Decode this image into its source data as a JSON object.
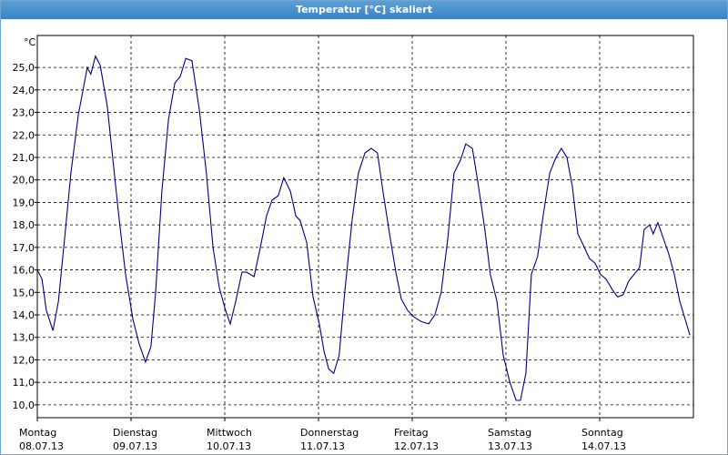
{
  "window_title": "Temperatur [°C] skaliert",
  "chart_data": {
    "type": "line",
    "y_unit": "°C",
    "xlim": [
      0,
      168
    ],
    "ylim": [
      9.43,
      26.42
    ],
    "xticks": [
      {
        "value": 0,
        "label": "Montag",
        "sublabel": "08.07.13"
      },
      {
        "value": 24,
        "label": "Dienstag",
        "sublabel": "09.07.13"
      },
      {
        "value": 48,
        "label": "Mittwoch",
        "sublabel": "10.07.13"
      },
      {
        "value": 72,
        "label": "Donnerstag",
        "sublabel": "11.07.13"
      },
      {
        "value": 96,
        "label": "Freitag",
        "sublabel": "12.07.13"
      },
      {
        "value": 120,
        "label": "Samstag",
        "sublabel": "13.07.13"
      },
      {
        "value": 144,
        "label": "Sonntag",
        "sublabel": "14.07.13"
      }
    ],
    "yticks": [
      {
        "value": 10,
        "label": "10,0"
      },
      {
        "value": 11,
        "label": "11,0"
      },
      {
        "value": 12,
        "label": "12,0"
      },
      {
        "value": 13,
        "label": "13,0"
      },
      {
        "value": 14,
        "label": "14,0"
      },
      {
        "value": 15,
        "label": "15,0"
      },
      {
        "value": 16,
        "label": "16,0"
      },
      {
        "value": 17,
        "label": "17,0"
      },
      {
        "value": 18,
        "label": "18,0"
      },
      {
        "value": 19,
        "label": "19,0"
      },
      {
        "value": 20,
        "label": "20,0"
      },
      {
        "value": 21,
        "label": "21,0"
      },
      {
        "value": 22,
        "label": "22,0"
      },
      {
        "value": 23,
        "label": "23,0"
      },
      {
        "value": 24,
        "label": "24,0"
      },
      {
        "value": 25,
        "label": "25,0"
      }
    ],
    "grid": true,
    "color": "#000080",
    "x": [
      0,
      1.2,
      2.3,
      4.0,
      5.4,
      7.0,
      8.6,
      10.5,
      11.6,
      12.8,
      13.7,
      14.9,
      16.1,
      17.9,
      19.6,
      21.0,
      22.6,
      24.5,
      26.1,
      27.7,
      29.1,
      30.3,
      31.9,
      33.6,
      35.2,
      36.6,
      38.0,
      39.6,
      41.5,
      43.3,
      45.0,
      46.6,
      48.2,
      49.4,
      50.8,
      52.4,
      53.6,
      55.5,
      57.1,
      58.7,
      60.1,
      61.7,
      63.1,
      64.8,
      66.2,
      67.3,
      69.0,
      70.6,
      72.2,
      73.4,
      74.6,
      75.9,
      77.3,
      78.7,
      80.6,
      82.2,
      83.9,
      85.5,
      87.1,
      88.5,
      90.2,
      91.8,
      93.2,
      94.8,
      96.5,
      98.3,
      100.2,
      101.8,
      103.4,
      105.1,
      106.7,
      108.4,
      109.7,
      111.4,
      112.8,
      114.6,
      116.0,
      117.7,
      119.3,
      121.0,
      122.6,
      123.7,
      125.1,
      126.5,
      128.1,
      129.5,
      131.2,
      132.8,
      134.2,
      135.6,
      137.0,
      138.4,
      139.8,
      141.4,
      142.8,
      144.2,
      145.6,
      147.3,
      148.6,
      150.0,
      151.4,
      152.8,
      154.2,
      155.4,
      156.8,
      157.7,
      158.9,
      160.3,
      161.7,
      163.1,
      164.5,
      165.9,
      167.1
    ],
    "values": [
      16.0,
      15.6,
      14.2,
      13.3,
      14.6,
      17.4,
      20.3,
      22.9,
      23.9,
      25.0,
      24.7,
      25.5,
      25.1,
      23.3,
      20.5,
      18.2,
      15.8,
      13.8,
      12.7,
      11.9,
      12.6,
      15.0,
      19.5,
      22.7,
      24.3,
      24.6,
      25.4,
      25.3,
      23.1,
      20.3,
      17.0,
      15.2,
      14.2,
      13.6,
      14.6,
      15.9,
      15.9,
      15.7,
      17.0,
      18.4,
      19.1,
      19.3,
      20.1,
      19.5,
      18.4,
      18.2,
      17.2,
      14.8,
      13.6,
      12.4,
      11.6,
      11.4,
      12.2,
      15.0,
      18.2,
      20.3,
      21.2,
      21.4,
      21.2,
      19.5,
      17.6,
      15.9,
      14.7,
      14.2,
      13.9,
      13.7,
      13.6,
      14.0,
      15.0,
      17.4,
      20.3,
      20.9,
      21.6,
      21.4,
      19.9,
      17.8,
      15.8,
      14.6,
      12.2,
      11.0,
      10.2,
      10.2,
      11.4,
      15.8,
      16.6,
      18.4,
      20.3,
      21.0,
      21.4,
      21.0,
      19.7,
      17.6,
      17.1,
      16.5,
      16.3,
      15.8,
      15.6,
      15.1,
      14.8,
      14.9,
      15.5,
      15.8,
      16.1,
      17.8,
      18.0,
      17.6,
      18.1,
      17.4,
      16.7,
      15.8,
      14.6,
      13.8,
      13.1
    ]
  }
}
